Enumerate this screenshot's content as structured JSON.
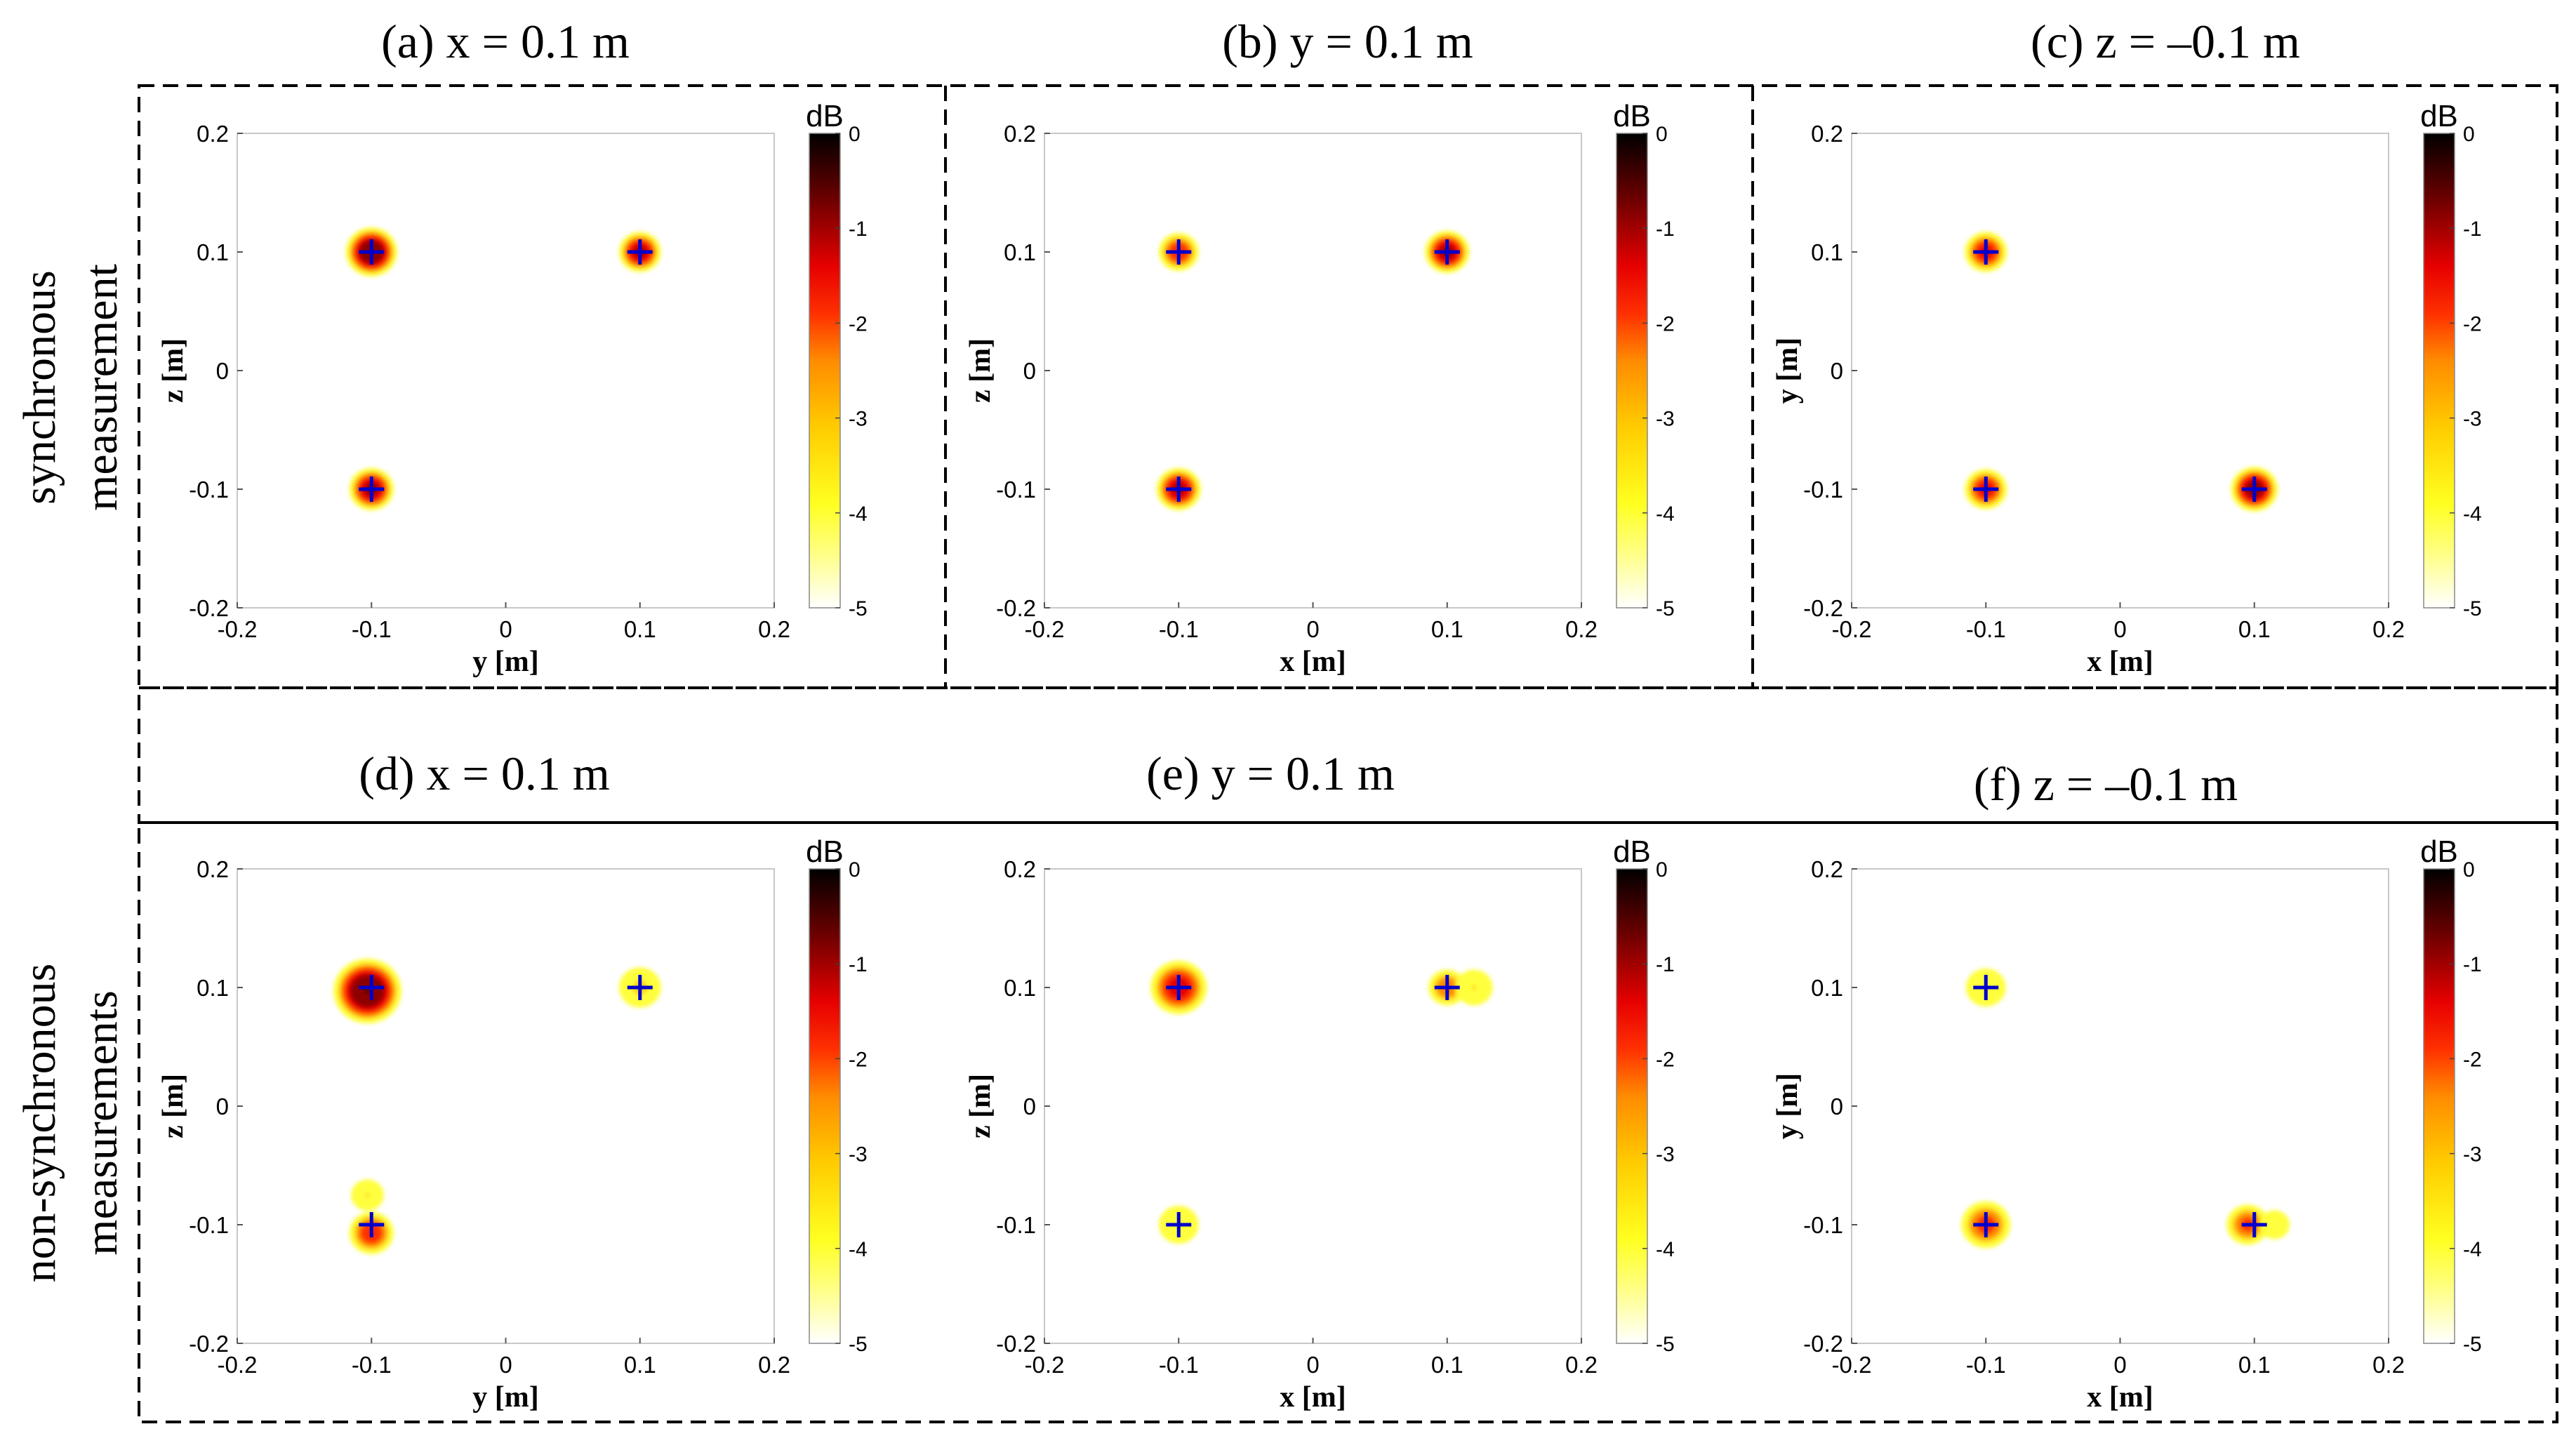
{
  "row_labels": [
    {
      "line1": "synchronous",
      "line2": "measurement"
    },
    {
      "line1": "non-synchronous",
      "line2": "measurements"
    }
  ],
  "colormap": [
    "#ffffff",
    "#ffff3c",
    "#ffd21e",
    "#ff8c00",
    "#ff3200",
    "#e60000",
    "#8c0000",
    "#000000"
  ],
  "marker_color": "#0000cc",
  "chart_data": [
    {
      "type": "heatmap",
      "title": "(a) x = 0.1 m",
      "xlabel": "y [m]",
      "ylabel": "z [m]",
      "xlim": [
        -0.2,
        0.2
      ],
      "ylim": [
        -0.2,
        0.2
      ],
      "xticks": [
        "-0.2",
        "-0.1",
        "0",
        "0.1",
        "0.2"
      ],
      "yticks": [
        "0.2",
        "0.1",
        "0",
        "-0.1",
        "-0.2"
      ],
      "colorbar": {
        "label": "dB",
        "range": [
          -5,
          0
        ],
        "ticks": [
          "0",
          "-1",
          "-2",
          "-3",
          "-4",
          "-5"
        ]
      },
      "sources": [
        {
          "x": -0.1,
          "y": 0.1,
          "peak_db": -0.2,
          "spread": 1.0
        },
        {
          "x": 0.1,
          "y": 0.1,
          "peak_db": -0.9,
          "spread": 0.8
        },
        {
          "x": -0.1,
          "y": -0.1,
          "peak_db": -0.8,
          "spread": 0.85
        }
      ],
      "markers": [
        {
          "x": -0.1,
          "y": 0.1
        },
        {
          "x": 0.1,
          "y": 0.1
        },
        {
          "x": -0.1,
          "y": -0.1
        }
      ]
    },
    {
      "type": "heatmap",
      "title": "(b) y = 0.1 m",
      "xlabel": "x [m]",
      "ylabel": "z [m]",
      "xlim": [
        -0.2,
        0.2
      ],
      "ylim": [
        -0.2,
        0.2
      ],
      "xticks": [
        "-0.2",
        "-0.1",
        "0",
        "0.1",
        "0.2"
      ],
      "yticks": [
        "0.2",
        "0.1",
        "0",
        "-0.1",
        "-0.2"
      ],
      "colorbar": {
        "label": "dB",
        "range": [
          -5,
          0
        ],
        "ticks": [
          "0",
          "-1",
          "-2",
          "-3",
          "-4",
          "-5"
        ]
      },
      "sources": [
        {
          "x": -0.1,
          "y": 0.1,
          "peak_db": -1.6,
          "spread": 0.75
        },
        {
          "x": 0.1,
          "y": 0.1,
          "peak_db": -0.8,
          "spread": 0.85
        },
        {
          "x": -0.1,
          "y": -0.1,
          "peak_db": -0.9,
          "spread": 0.85
        }
      ],
      "markers": [
        {
          "x": -0.1,
          "y": 0.1
        },
        {
          "x": 0.1,
          "y": 0.1
        },
        {
          "x": -0.1,
          "y": -0.1
        }
      ]
    },
    {
      "type": "heatmap",
      "title": "(c) z = ‒0.1 m",
      "xlabel": "x [m]",
      "ylabel": "y [m]",
      "xlim": [
        -0.2,
        0.2
      ],
      "ylim": [
        -0.2,
        0.2
      ],
      "xticks": [
        "-0.2",
        "-0.1",
        "0",
        "0.1",
        "0.2"
      ],
      "yticks": [
        "0.2",
        "0.1",
        "0",
        "-0.1",
        "-0.2"
      ],
      "colorbar": {
        "label": "dB",
        "range": [
          -5,
          0
        ],
        "ticks": [
          "0",
          "-1",
          "-2",
          "-3",
          "-4",
          "-5"
        ]
      },
      "sources": [
        {
          "x": -0.1,
          "y": 0.1,
          "peak_db": -1.4,
          "spread": 0.8
        },
        {
          "x": -0.1,
          "y": -0.1,
          "peak_db": -1.4,
          "spread": 0.8
        },
        {
          "x": 0.1,
          "y": -0.1,
          "peak_db": -0.6,
          "spread": 0.9
        }
      ],
      "markers": [
        {
          "x": -0.1,
          "y": 0.1
        },
        {
          "x": -0.1,
          "y": -0.1
        },
        {
          "x": 0.1,
          "y": -0.1
        }
      ]
    },
    {
      "type": "heatmap",
      "title": "(d) x = 0.1 m",
      "xlabel": "y [m]",
      "ylabel": "z [m]",
      "xlim": [
        -0.2,
        0.2
      ],
      "ylim": [
        -0.2,
        0.2
      ],
      "xticks": [
        "-0.2",
        "-0.1",
        "0",
        "0.1",
        "0.2"
      ],
      "yticks": [
        "0.2",
        "0.1",
        "0",
        "-0.1",
        "-0.2"
      ],
      "colorbar": {
        "label": "dB",
        "range": [
          -5,
          0
        ],
        "ticks": [
          "0",
          "-1",
          "-2",
          "-3",
          "-4",
          "-5"
        ]
      },
      "sources": [
        {
          "x": -0.103,
          "y": 0.097,
          "peak_db": 0.0,
          "spread": 1.35
        },
        {
          "x": 0.1,
          "y": 0.1,
          "peak_db": -3.3,
          "spread": 0.8
        },
        {
          "x": -0.1,
          "y": -0.107,
          "peak_db": -1.6,
          "spread": 0.85
        },
        {
          "x": -0.103,
          "y": -0.075,
          "peak_db": -3.5,
          "spread": 0.6
        }
      ],
      "markers": [
        {
          "x": -0.1,
          "y": 0.1
        },
        {
          "x": 0.1,
          "y": 0.1
        },
        {
          "x": -0.1,
          "y": -0.1
        }
      ]
    },
    {
      "type": "heatmap",
      "title": "(e) y = 0.1 m",
      "xlabel": "x [m]",
      "ylabel": "z [m]",
      "xlim": [
        -0.2,
        0.2
      ],
      "ylim": [
        -0.2,
        0.2
      ],
      "xticks": [
        "-0.2",
        "-0.1",
        "0",
        "0.1",
        "0.2"
      ],
      "yticks": [
        "0.2",
        "0.1",
        "0",
        "-0.1",
        "-0.2"
      ],
      "colorbar": {
        "label": "dB",
        "range": [
          -5,
          0
        ],
        "ticks": [
          "0",
          "-1",
          "-2",
          "-3",
          "-4",
          "-5"
        ]
      },
      "sources": [
        {
          "x": -0.1,
          "y": 0.1,
          "peak_db": -1.2,
          "spread": 1.1
        },
        {
          "x": 0.1,
          "y": 0.1,
          "peak_db": -2.2,
          "spread": 0.7
        },
        {
          "x": 0.12,
          "y": 0.1,
          "peak_db": -3.8,
          "spread": 0.7
        },
        {
          "x": -0.1,
          "y": -0.1,
          "peak_db": -3.6,
          "spread": 0.75
        }
      ],
      "markers": [
        {
          "x": -0.1,
          "y": 0.1
        },
        {
          "x": 0.1,
          "y": 0.1
        },
        {
          "x": -0.1,
          "y": -0.1
        }
      ]
    },
    {
      "type": "heatmap",
      "title": "(f) z = ‒0.1 m",
      "xlabel": "x [m]",
      "ylabel": "y [m]",
      "xlim": [
        -0.2,
        0.2
      ],
      "ylim": [
        -0.2,
        0.2
      ],
      "xticks": [
        "-0.2",
        "-0.1",
        "0",
        "0.1",
        "0.2"
      ],
      "yticks": [
        "0.2",
        "0.1",
        "0",
        "-0.1",
        "-0.2"
      ],
      "colorbar": {
        "label": "dB",
        "range": [
          -5,
          0
        ],
        "ticks": [
          "0",
          "-1",
          "-2",
          "-3",
          "-4",
          "-5"
        ]
      },
      "sources": [
        {
          "x": -0.1,
          "y": 0.1,
          "peak_db": -3.6,
          "spread": 0.75
        },
        {
          "x": -0.1,
          "y": -0.1,
          "peak_db": -1.9,
          "spread": 0.95
        },
        {
          "x": 0.095,
          "y": -0.1,
          "peak_db": -2.0,
          "spread": 0.8
        },
        {
          "x": 0.115,
          "y": -0.1,
          "peak_db": -4.2,
          "spread": 0.55
        }
      ],
      "markers": [
        {
          "x": -0.1,
          "y": 0.1
        },
        {
          "x": -0.1,
          "y": -0.1
        },
        {
          "x": 0.1,
          "y": -0.1
        }
      ]
    }
  ]
}
